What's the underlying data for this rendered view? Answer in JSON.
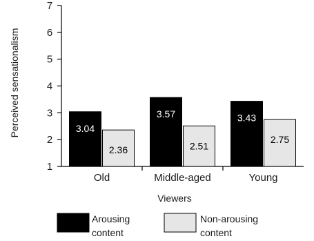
{
  "chart_data": {
    "type": "bar",
    "categories": [
      "Old",
      "Middle-aged",
      "Young"
    ],
    "series": [
      {
        "name": "Arousing content",
        "values": [
          3.04,
          3.57,
          3.43
        ],
        "color": "#000000",
        "label_color": "#ffffff"
      },
      {
        "name": "Non-arousing content",
        "values": [
          2.36,
          2.51,
          2.75
        ],
        "color": "#e6e6e6",
        "label_color": "#000000"
      }
    ],
    "xlabel": "Viewers",
    "ylabel": "Perceived sensationalism",
    "ylim": [
      1,
      7
    ],
    "yticks": [
      "1",
      "2",
      "3",
      "4",
      "5",
      "6",
      "7"
    ],
    "data_labels": [
      [
        "3.04",
        "3.57",
        "3.43"
      ],
      [
        "2.36",
        "2.51",
        "2.75"
      ]
    ],
    "legend": {
      "position": "bottom",
      "entries": [
        {
          "line1": "Arousing",
          "line2": "content"
        },
        {
          "line1": "Non-arousing",
          "line2": "content"
        }
      ]
    },
    "grid": false
  }
}
